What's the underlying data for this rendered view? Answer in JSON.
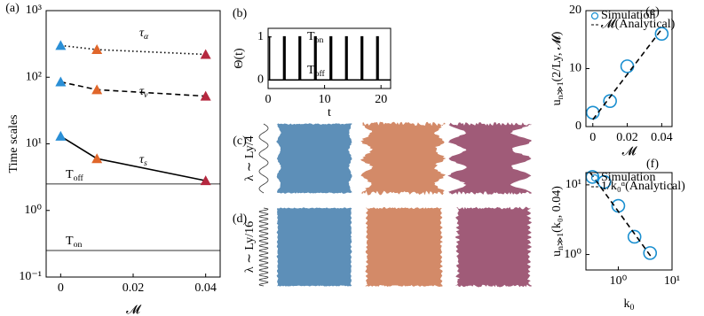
{
  "chart_data": [
    {
      "type": "line",
      "panel_label": "(a)",
      "log_y": true,
      "x": [
        0,
        0.01,
        0.04
      ],
      "series": [
        {
          "label": {
            "text": "τ",
            "sub": "α"
          },
          "color": "#000000",
          "style": "dotted",
          "marker": "triangle",
          "marker_colors": [
            "#2a8fd6",
            "#e0662a",
            "#b5283f"
          ],
          "values": [
            300,
            260,
            220
          ]
        },
        {
          "label": {
            "text": "τ",
            "sub": "ν"
          },
          "color": "#000000",
          "style": "dashed",
          "marker": "triangle",
          "marker_colors": [
            "#2a8fd6",
            "#e0662a",
            "#b5283f"
          ],
          "values": [
            85,
            65,
            52
          ]
        },
        {
          "label": {
            "text": "τ",
            "sub": "s"
          },
          "color": "#000000",
          "style": "solid",
          "marker": "triangle",
          "marker_colors": [
            "#2a8fd6",
            "#e0662a",
            "#b5283f"
          ],
          "values": [
            13,
            6,
            2.8
          ]
        }
      ],
      "hlines": [
        {
          "value": 2.5,
          "label": {
            "text": "T",
            "sub": "off"
          },
          "color": "#777777"
        },
        {
          "value": 0.25,
          "label": {
            "text": "T",
            "sub": "on"
          },
          "color": "#777777"
        }
      ],
      "xlabel": "𝓜",
      "ylabel": "Time scales",
      "xlim": [
        -0.004,
        0.044
      ],
      "xticks": [
        0,
        0.02,
        0.04
      ],
      "ylim": [
        0.1,
        1000
      ],
      "yticks": [
        {
          "value": 0.1,
          "label": "10⁻¹"
        },
        {
          "value": 1,
          "label": "10⁰"
        },
        {
          "value": 10,
          "label": "10¹"
        },
        {
          "value": 100,
          "label": "10²"
        },
        {
          "value": 1000,
          "label": "10³"
        }
      ]
    },
    {
      "type": "line",
      "panel_label": "(b)",
      "x": [
        0,
        0.25,
        0.25,
        2.75,
        2.75,
        3,
        3,
        5.5,
        5.5,
        5.75,
        5.75,
        8.25,
        8.25,
        8.5,
        8.5,
        11,
        11,
        11.25,
        11.25,
        13.75,
        13.75,
        14,
        14,
        16.5,
        16.5,
        16.75,
        16.75,
        19.25,
        19.25,
        19.5,
        19.5,
        21.7
      ],
      "series": [
        {
          "color": "#000000",
          "style": "solid",
          "values": [
            1,
            1,
            0,
            0,
            1,
            1,
            0,
            0,
            1,
            1,
            0,
            0,
            1,
            1,
            0,
            0,
            1,
            1,
            0,
            0,
            1,
            1,
            0,
            0,
            1,
            1,
            0,
            0,
            1,
            1,
            0,
            0
          ]
        }
      ],
      "annotations": [
        {
          "text": "T",
          "sub": "on"
        },
        {
          "text": "T",
          "sub": "off"
        }
      ],
      "xlabel": "t",
      "ylabel": "Θ(t)",
      "xlim": [
        0,
        21.7
      ],
      "xticks": [
        0,
        10,
        20
      ],
      "ylim": [
        -0.2,
        1.2
      ],
      "yticks": [
        0,
        1
      ]
    },
    {
      "type": "scatter",
      "panel_label": "(e)",
      "legend": "upper left",
      "series": [
        {
          "name": "Simulation",
          "color": "#1a8fd0",
          "style": "none",
          "marker": "circle",
          "x": [
            0,
            0.01,
            0.02,
            0.04
          ],
          "values": [
            2.4,
            4.4,
            10.4,
            16
          ]
        },
        {
          "name": "𝓜(Analytical)",
          "color": "#000000",
          "style": "dashed",
          "x": [
            0,
            0.04
          ],
          "values": [
            1.2,
            16.8
          ]
        }
      ],
      "xlabel": "𝓜",
      "ylabel": {
        "text": "u",
        "sub": "n≫1",
        "rest": "(2/Ly, 𝓜)"
      },
      "xlim": [
        -0.004,
        0.046
      ],
      "xticks": [
        0,
        0.02,
        0.04
      ],
      "ylim": [
        0,
        20
      ],
      "yticks": [
        0,
        10,
        20
      ]
    },
    {
      "type": "scatter",
      "panel_label": "(f)",
      "legend": "upper left",
      "log_x": true,
      "log_y": true,
      "series": [
        {
          "name": "Simulation",
          "color": "#1a8fd0",
          "style": "none",
          "marker": "circle",
          "x": [
            0.33,
            0.55,
            1,
            2,
            3.9
          ],
          "values": [
            13,
            11,
            5,
            1.8,
            1.05
          ]
        },
        {
          "name": "1/k₀ᵅ(Analytical)",
          "color": "#000000",
          "style": "dashed",
          "x": [
            0.3,
            4
          ],
          "values": [
            15,
            0.95
          ]
        }
      ],
      "xlabel": {
        "text": "k",
        "sub": "0"
      },
      "ylabel": {
        "text": "u",
        "sub": "n≫1",
        "rest": "(k₀, 0.04)"
      },
      "xlim": [
        0.25,
        10
      ],
      "xticks": [
        {
          "value": 1,
          "label": "10⁰"
        },
        {
          "value": 10,
          "label": "10¹"
        }
      ],
      "ylim": [
        0.6,
        15
      ],
      "yticks": [
        {
          "value": 1,
          "label": "10⁰"
        },
        {
          "value": 10,
          "label": "10¹"
        }
      ]
    }
  ],
  "panels": [
    {
      "label": "(c)",
      "wavelength_label": "λ ∼ Ly/4"
    },
    {
      "label": "(d)",
      "wavelength_label": "λ ∼ Ly/16"
    }
  ]
}
